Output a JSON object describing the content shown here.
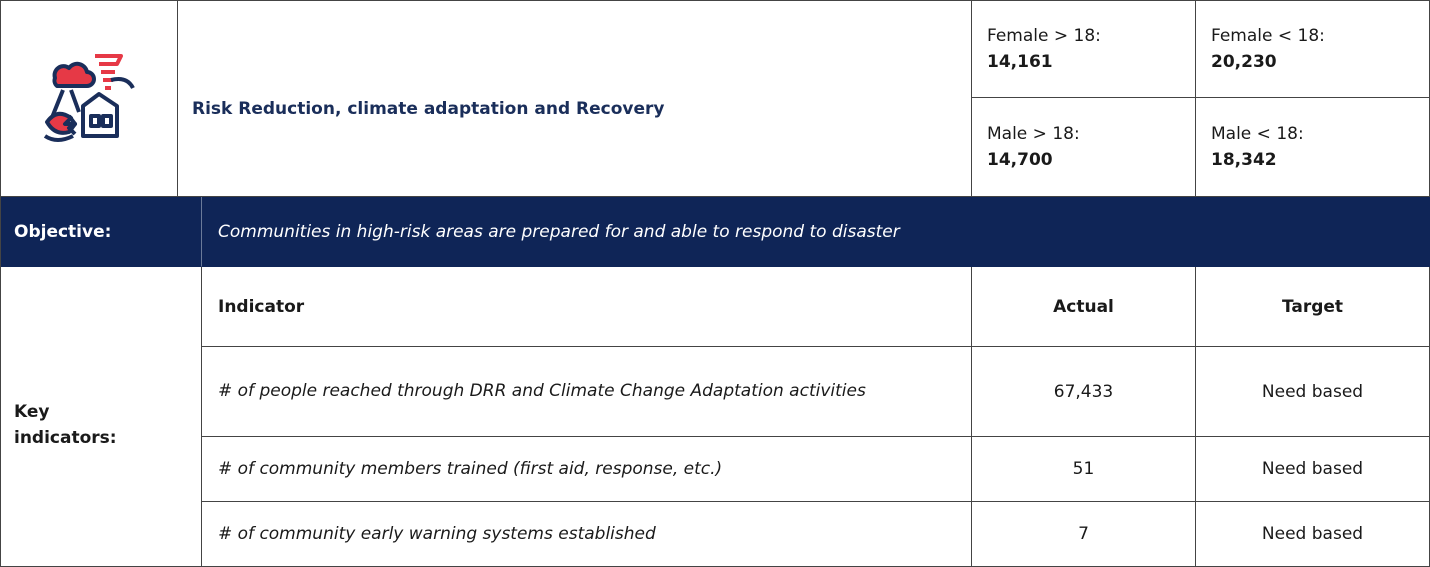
{
  "header": {
    "title": "Risk Reduction, climate adaptation and Recovery"
  },
  "demographics": [
    {
      "label": "Female > 18:",
      "value": "14,161"
    },
    {
      "label": "Female < 18:",
      "value": "20,230"
    },
    {
      "label": "Male > 18:",
      "value": "14,700"
    },
    {
      "label": "Male < 18:",
      "value": "18,342"
    }
  ],
  "objective": {
    "label": "Objective:",
    "text": "Communities in high-risk areas are prepared for and able to respond to disaster"
  },
  "indicators": {
    "label": "Key indicators:",
    "columns": [
      "Indicator",
      "Actual",
      "Target"
    ],
    "rows": [
      [
        "# of people reached through DRR and Climate Change Adaptation activities",
        "67,433",
        "Need based"
      ],
      [
        "# of community members trained (first aid, response, etc.)",
        "51",
        "Need based"
      ],
      [
        "# of community early warning systems established",
        "7",
        "Need based"
      ]
    ]
  }
}
